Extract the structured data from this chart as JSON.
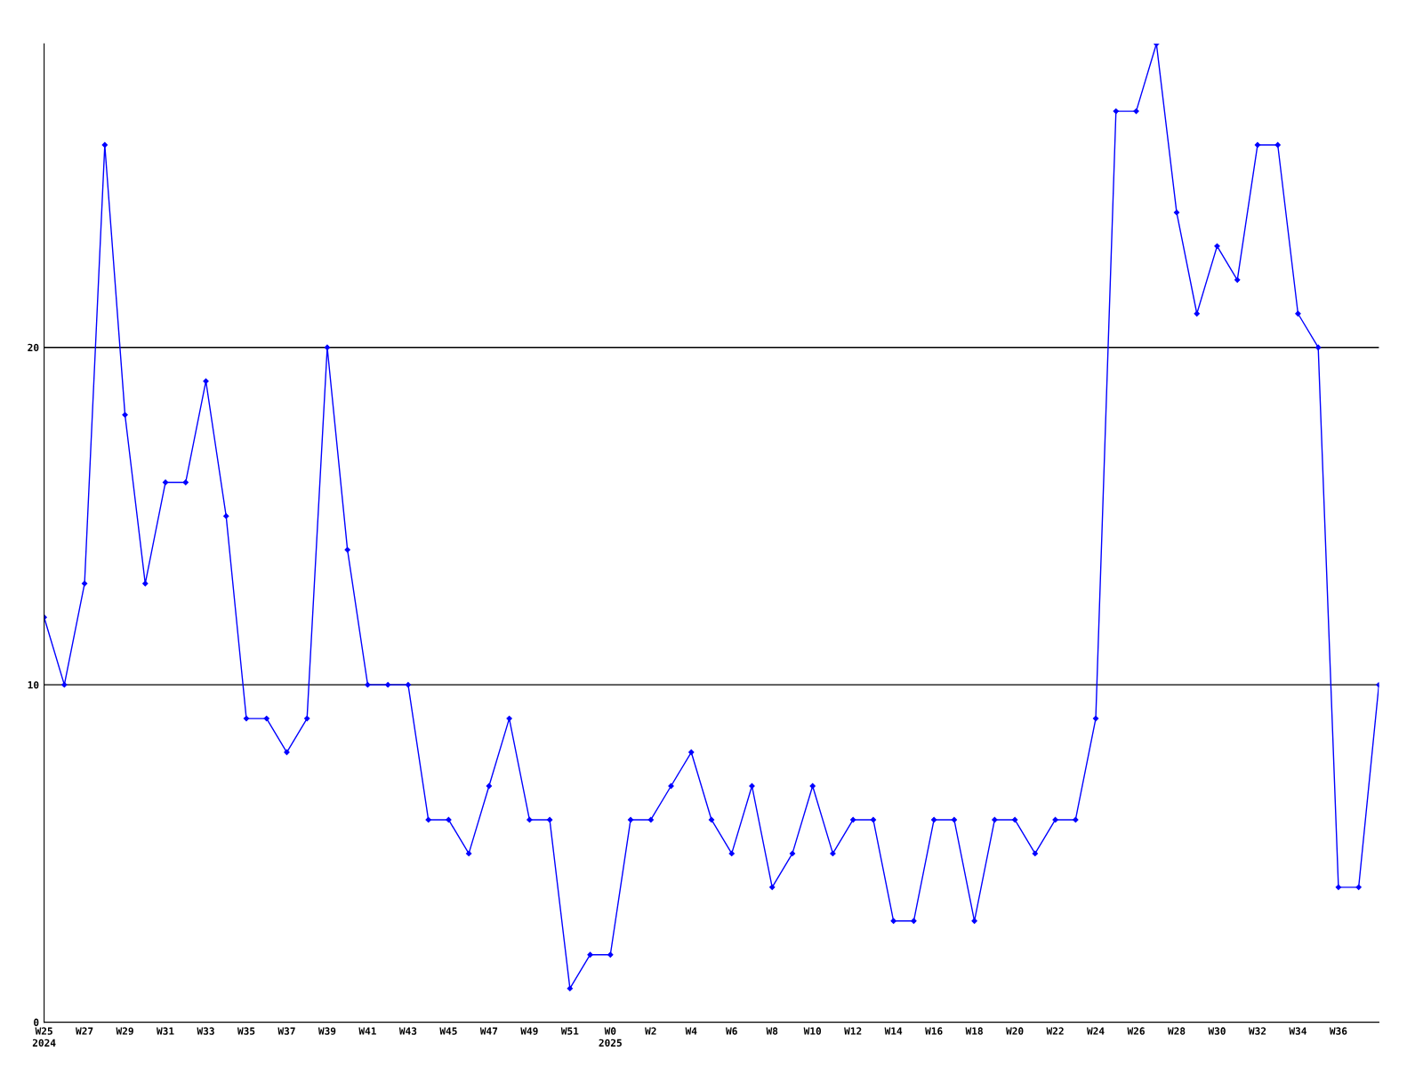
{
  "chart_data": {
    "type": "line",
    "categories": [
      "W25\n2024",
      null,
      "W27",
      null,
      "W29",
      null,
      "W31",
      null,
      "W33",
      null,
      "W35",
      null,
      "W37",
      null,
      "W39",
      null,
      "W41",
      null,
      "W43",
      null,
      "W45",
      null,
      "W47",
      null,
      "W49",
      null,
      "W51",
      null,
      "W0\n2025",
      null,
      "W2",
      null,
      "W4",
      null,
      "W6",
      null,
      "W8",
      null,
      "W10",
      null,
      "W12",
      null,
      "W14",
      null,
      "W16",
      null,
      "W18",
      null,
      "W20",
      null,
      "W22",
      null,
      "W24",
      null,
      "W26",
      null,
      "W28",
      null,
      "W30",
      null,
      "W32",
      null,
      "W34",
      null,
      "W36",
      null,
      null
    ],
    "series": [
      {
        "color": "#0000ff",
        "values": [
          12,
          10,
          13,
          26,
          18,
          13,
          16,
          16,
          19,
          15,
          9,
          9,
          8,
          9,
          20,
          14,
          10,
          10,
          10,
          6,
          6,
          5,
          7,
          9,
          6,
          6,
          1,
          2,
          2,
          6,
          6,
          7,
          8,
          6,
          5,
          7,
          4,
          5,
          7,
          5,
          6,
          6,
          3,
          3,
          6,
          6,
          3,
          6,
          6,
          5,
          6,
          6,
          9,
          27,
          27,
          29,
          24,
          21,
          23,
          22,
          26,
          26,
          21,
          20,
          4,
          4,
          10
        ]
      }
    ],
    "ylim": [
      0,
      29
    ],
    "yticks": [
      0,
      10,
      20
    ],
    "grid": "y",
    "marker": "diamond",
    "line_style": "solid",
    "legend": false
  }
}
